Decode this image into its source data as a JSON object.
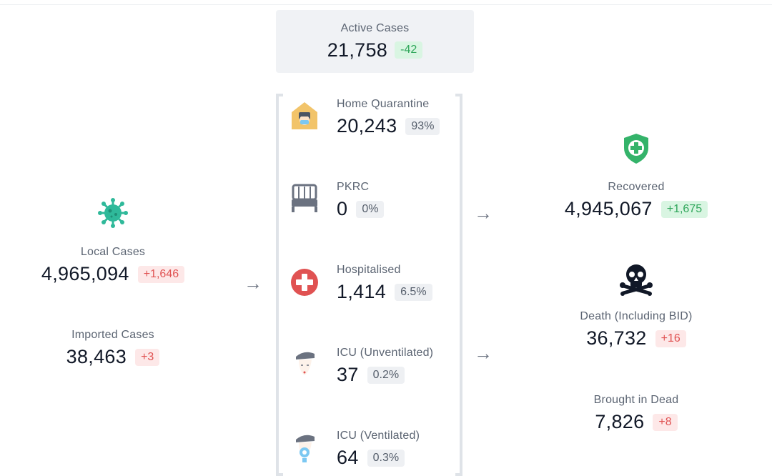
{
  "active": {
    "label": "Active Cases",
    "value": "21,758",
    "delta": "-42"
  },
  "local": {
    "label": "Local Cases",
    "value": "4,965,094",
    "delta": "+1,646"
  },
  "imported": {
    "label": "Imported Cases",
    "value": "38,463",
    "delta": "+3"
  },
  "quarantine": [
    {
      "label": "Home Quarantine",
      "value": "20,243",
      "pct": "93%",
      "icon": "house-icon"
    },
    {
      "label": "PKRC",
      "value": "0",
      "pct": "0%",
      "icon": "bed-icon"
    },
    {
      "label": "Hospitalised",
      "value": "1,414",
      "pct": "6.5%",
      "icon": "red-cross-icon"
    },
    {
      "label": "ICU (Unventilated)",
      "value": "37",
      "pct": "0.2%",
      "icon": "patient-icon"
    },
    {
      "label": "ICU (Ventilated)",
      "value": "64",
      "pct": "0.3%",
      "icon": "ventilator-patient-icon"
    }
  ],
  "recovered": {
    "label": "Recovered",
    "value": "4,945,067",
    "delta": "+1,675"
  },
  "death": {
    "label": "Death (Including BID)",
    "value": "36,732",
    "delta": "+16"
  },
  "bid": {
    "label": "Brought in Dead",
    "value": "7,826",
    "delta": "+8"
  },
  "arrows": {
    "glyph": "→"
  },
  "colors": {
    "red": "#e05252",
    "green": "#2fa65a",
    "virus": "#2fb99a",
    "shield": "#34b36a",
    "skull": "#111827"
  }
}
